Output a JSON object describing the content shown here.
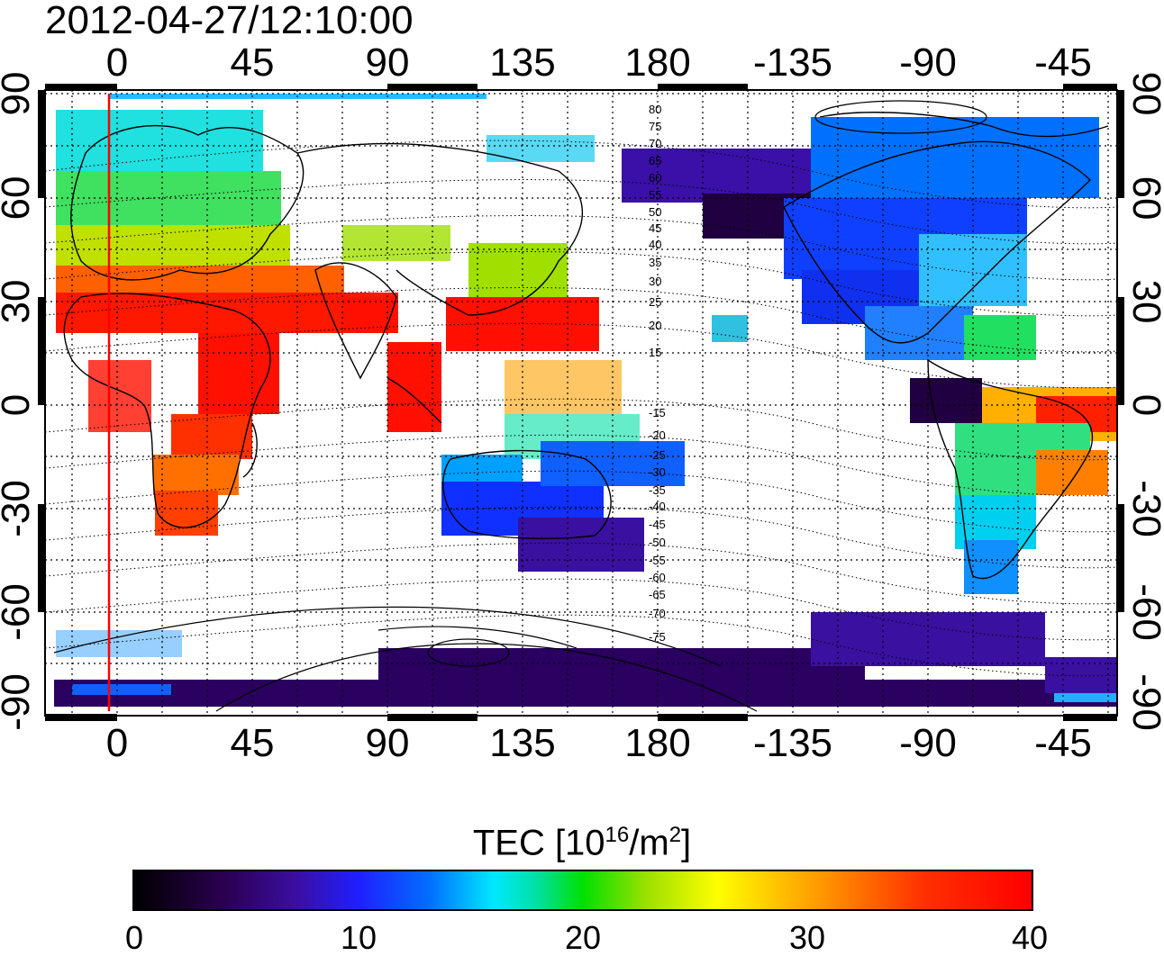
{
  "timestamp": "2012-04-27/12:10:00",
  "map": {
    "type": "TEC global map",
    "lon_ticks": [
      "0",
      "45",
      "90",
      "135",
      "180",
      "-135",
      "-90",
      "-45"
    ],
    "lat_ticks_left": [
      "90",
      "60",
      "30",
      "0",
      "-30",
      "-60",
      "-90"
    ],
    "lat_ticks_right": [
      "90",
      "60",
      "30",
      "0",
      "-30",
      "-60",
      "-90"
    ],
    "magnetic_latitude_labels": [
      "80",
      "75",
      "70",
      "65",
      "60",
      "55",
      "50",
      "45",
      "40",
      "35",
      "30",
      "25",
      "20",
      "15",
      "-15",
      "-20",
      "-25",
      "-30",
      "-35",
      "-40",
      "-45",
      "-50",
      "-55",
      "-60",
      "-65",
      "-70",
      "-75"
    ],
    "grid": "dotted every 15 degrees"
  },
  "colorbar": {
    "title_prefix": "TEC  [10",
    "title_exp1": "16",
    "title_mid": "/m",
    "title_exp2": "2",
    "title_suffix": "]",
    "ticks": [
      "0",
      "10",
      "20",
      "30",
      "40"
    ],
    "range": [
      0,
      40
    ]
  },
  "colors": {
    "low": "#000000",
    "mid": "#00e000",
    "high": "#ff0000",
    "terminator_line": "#ff0000"
  }
}
